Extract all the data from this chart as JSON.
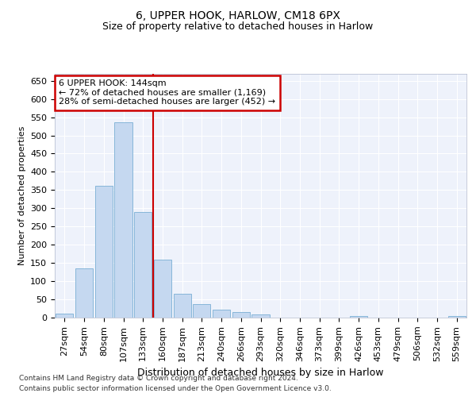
{
  "title1": "6, UPPER HOOK, HARLOW, CM18 6PX",
  "title2": "Size of property relative to detached houses in Harlow",
  "xlabel": "Distribution of detached houses by size in Harlow",
  "ylabel": "Number of detached properties",
  "categories": [
    "27sqm",
    "54sqm",
    "80sqm",
    "107sqm",
    "133sqm",
    "160sqm",
    "187sqm",
    "213sqm",
    "240sqm",
    "266sqm",
    "293sqm",
    "320sqm",
    "346sqm",
    "373sqm",
    "399sqm",
    "426sqm",
    "453sqm",
    "479sqm",
    "506sqm",
    "532sqm",
    "559sqm"
  ],
  "values": [
    10,
    135,
    362,
    537,
    290,
    158,
    65,
    38,
    22,
    15,
    8,
    0,
    0,
    0,
    0,
    5,
    0,
    0,
    0,
    0,
    5
  ],
  "bar_color": "#c5d8f0",
  "bar_edge_color": "#7aafd4",
  "vline_color": "#cc0000",
  "vline_x": 4.5,
  "annotation_text": "6 UPPER HOOK: 144sqm\n← 72% of detached houses are smaller (1,169)\n28% of semi-detached houses are larger (452) →",
  "annotation_box_facecolor": "#ffffff",
  "annotation_box_edgecolor": "#cc0000",
  "ylim": [
    0,
    670
  ],
  "yticks": [
    0,
    50,
    100,
    150,
    200,
    250,
    300,
    350,
    400,
    450,
    500,
    550,
    600,
    650
  ],
  "bg_color": "#eef2fb",
  "grid_color": "#ffffff",
  "footer1": "Contains HM Land Registry data © Crown copyright and database right 2024.",
  "footer2": "Contains public sector information licensed under the Open Government Licence v3.0.",
  "title1_fontsize": 10,
  "title2_fontsize": 9,
  "ylabel_fontsize": 8,
  "xlabel_fontsize": 9,
  "tick_fontsize": 8,
  "annot_fontsize": 8,
  "footer_fontsize": 6.5
}
